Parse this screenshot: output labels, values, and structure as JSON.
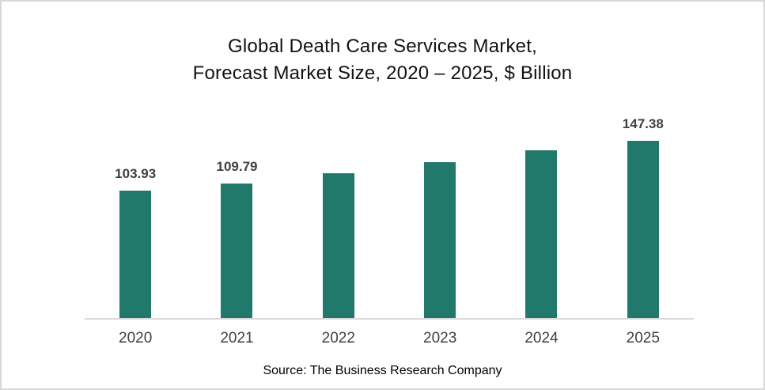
{
  "title": {
    "line1": "Global Death Care Services Market,",
    "line2": "Forecast Market Size, 2020 – 2025, $ Billion"
  },
  "source": "Source: The Business Research Company",
  "colors": {
    "bar": "#21796C",
    "axis_line": "#D9D9D9",
    "value_label": "#3F3F3F",
    "tick_label": "#404040",
    "title": "#111111",
    "frame_border": "#D8D8D8",
    "background": "#FFFFFF"
  },
  "chart_data": {
    "type": "bar",
    "title": "Global Death Care Services Market, Forecast Market Size, 2020 – 2025, $ Billion",
    "unit": "$ Billion",
    "categories": [
      "2020",
      "2021",
      "2022",
      "2023",
      "2024",
      "2025"
    ],
    "values": [
      103.93,
      109.79,
      118.18,
      127.21,
      136.93,
      147.38
    ],
    "value_labels": [
      "103.93",
      "109.79",
      "",
      "",
      "",
      "147.38"
    ],
    "values_estimated": [
      false,
      false,
      true,
      true,
      true,
      false
    ],
    "xlabel": "",
    "ylabel": "",
    "ylim": [
      0,
      165
    ],
    "grid": false,
    "legend": false,
    "bar_color": "#21796C",
    "axis_line_color": "#D9D9D9"
  }
}
